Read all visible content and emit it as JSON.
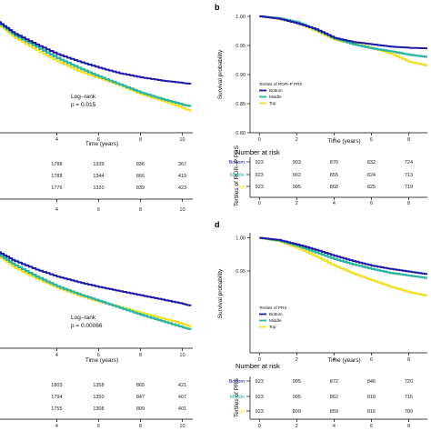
{
  "colors": {
    "Bottom": "#1f1aa5",
    "Middle": "#2fb6a3",
    "Top": "#f0e22b"
  },
  "chart_data": [
    {
      "panel": "",
      "type": "line",
      "xlabel": "Time (years)",
      "ylabel": "",
      "xlim": [
        1.2,
        10.5
      ],
      "ylim": [
        0.855,
        1.0
      ],
      "xticks": [
        4,
        6,
        8,
        10
      ],
      "yticks": [],
      "annotation": [
        "Log–rank",
        "p = 0.015"
      ],
      "series": [
        {
          "key": "Bottom",
          "x": [
            1.2,
            2,
            3,
            4,
            5,
            6,
            7,
            8,
            9,
            10,
            10.4
          ],
          "y": [
            0.993,
            0.978,
            0.965,
            0.953,
            0.944,
            0.936,
            0.929,
            0.924,
            0.92,
            0.917,
            0.916
          ]
        },
        {
          "key": "Middle",
          "x": [
            1.2,
            2,
            3,
            4,
            5,
            6,
            7,
            8,
            9,
            10,
            10.4
          ],
          "y": [
            0.992,
            0.976,
            0.962,
            0.948,
            0.936,
            0.925,
            0.915,
            0.905,
            0.897,
            0.89,
            0.888
          ]
        },
        {
          "key": "Top",
          "x": [
            1.2,
            2,
            3,
            4,
            5,
            6,
            7,
            8,
            9,
            10,
            10.4
          ],
          "y": [
            0.99,
            0.973,
            0.958,
            0.944,
            0.932,
            0.923,
            0.914,
            0.903,
            0.895,
            0.886,
            0.882
          ]
        }
      ],
      "risk_table": {
        "rows": [
          {
            "key": "Bottom",
            "values": [
              "1788",
              "1339",
              "836",
              "367"
            ]
          },
          {
            "key": "Middle",
            "values": [
              "1788",
              "1344",
              "866",
              "419"
            ]
          },
          {
            "key": "Top",
            "values": [
              "1776",
              "1320",
              "839",
              "423"
            ]
          }
        ],
        "xticks": [
          4,
          6,
          8,
          10
        ],
        "xlabel": "Time (years)"
      }
    },
    {
      "panel": "b",
      "type": "line",
      "xlabel": "Time (years)",
      "ylabel": "Survival probability",
      "xlim": [
        -0.5,
        9.0
      ],
      "ylim": [
        0.8,
        1.0
      ],
      "xticks": [
        0,
        2,
        4,
        6,
        8
      ],
      "yticks": [
        "1.00",
        "0.95",
        "0.90",
        "0.85",
        "0.80"
      ],
      "legend": {
        "title": "Tertiles of ROR–P PRS",
        "items": [
          "Bottom",
          "Middle",
          "Top"
        ]
      },
      "series": [
        {
          "key": "Bottom",
          "x": [
            0,
            1,
            2,
            3,
            4,
            5,
            6,
            7,
            8,
            9
          ],
          "y": [
            1.0,
            0.996,
            0.988,
            0.978,
            0.963,
            0.956,
            0.952,
            0.948,
            0.946,
            0.945
          ]
        },
        {
          "key": "Middle",
          "x": [
            0,
            1,
            2,
            3,
            4,
            5,
            6,
            7,
            8,
            9
          ],
          "y": [
            1.0,
            0.997,
            0.99,
            0.977,
            0.962,
            0.952,
            0.945,
            0.94,
            0.934,
            0.93
          ]
        },
        {
          "key": "Top",
          "x": [
            0,
            1,
            2,
            3,
            4,
            5,
            6,
            7,
            8,
            9
          ],
          "y": [
            1.0,
            0.996,
            0.989,
            0.975,
            0.96,
            0.953,
            0.946,
            0.936,
            0.922,
            0.915
          ]
        }
      ],
      "risk_table": {
        "title": "Number at risk",
        "ylabel": "Tertiles of ROR–P PRS",
        "rows": [
          {
            "key": "Bottom",
            "label": "Bottom",
            "values": [
              "923",
              "903",
              "870",
              "832",
              "724"
            ]
          },
          {
            "key": "Middle",
            "label": "Middle",
            "values": [
              "923",
              "902",
              "855",
              "824",
              "713"
            ]
          },
          {
            "key": "Top",
            "label": "Top",
            "values": [
              "923",
              "905",
              "868",
              "825",
              "719"
            ]
          }
        ],
        "xticks": [
          0,
          2,
          4,
          6,
          8
        ],
        "xlabel": "Time (years)"
      }
    },
    {
      "panel": "",
      "type": "line",
      "xlabel": "Time (years)",
      "ylabel": "",
      "xlim": [
        1.2,
        10.5
      ],
      "ylim": [
        0.855,
        1.0
      ],
      "xticks": [
        4,
        6,
        8,
        10
      ],
      "yticks": [],
      "annotation": [
        "Log–rank",
        "p = 0.00066"
      ],
      "series": [
        {
          "key": "Bottom",
          "x": [
            1.2,
            2,
            3,
            4,
            5,
            6,
            7,
            8,
            9,
            10,
            10.4
          ],
          "y": [
            0.993,
            0.98,
            0.968,
            0.958,
            0.95,
            0.943,
            0.937,
            0.931,
            0.925,
            0.919,
            0.916
          ]
        },
        {
          "key": "Middle",
          "x": [
            1.2,
            2,
            3,
            4,
            5,
            6,
            7,
            8,
            9,
            10,
            10.4
          ],
          "y": [
            0.99,
            0.974,
            0.958,
            0.944,
            0.933,
            0.923,
            0.913,
            0.903,
            0.894,
            0.885,
            0.882
          ]
        },
        {
          "key": "Top",
          "x": [
            1.2,
            2,
            3,
            4,
            5,
            6,
            7,
            8,
            9,
            10,
            10.4
          ],
          "y": [
            0.988,
            0.97,
            0.955,
            0.942,
            0.931,
            0.922,
            0.914,
            0.906,
            0.898,
            0.89,
            0.886
          ]
        }
      ],
      "risk_table": {
        "rows": [
          {
            "key": "Bottom",
            "values": [
              "1803",
              "1358",
              "865",
              "421"
            ]
          },
          {
            "key": "Middle",
            "values": [
              "1794",
              "1350",
              "847",
              "407"
            ]
          },
          {
            "key": "Top",
            "values": [
              "1755",
              "1308",
              "809",
              "401"
            ]
          }
        ],
        "xticks": [
          4,
          6,
          8,
          10
        ],
        "xlabel": "Time (years)"
      }
    },
    {
      "panel": "d",
      "type": "line",
      "xlabel": "Time (years)",
      "ylabel": "Survival probability",
      "xlim": [
        -0.5,
        9.0
      ],
      "ylim": [
        0.895,
        1.005
      ],
      "xticks": [
        0,
        2,
        4,
        6,
        8
      ],
      "yticks": [
        "1.00",
        "0.95"
      ],
      "legend": {
        "title": "Tertiles of PRS",
        "items": [
          "Bottom",
          "Middle",
          "Top"
        ]
      },
      "series": [
        {
          "key": "Bottom",
          "x": [
            0,
            1,
            2,
            3,
            4,
            5,
            6,
            7,
            8,
            9
          ],
          "y": [
            1.0,
            0.997,
            0.99,
            0.982,
            0.973,
            0.965,
            0.958,
            0.953,
            0.949,
            0.945
          ]
        },
        {
          "key": "Middle",
          "x": [
            0,
            1,
            2,
            3,
            4,
            5,
            6,
            7,
            8,
            9
          ],
          "y": [
            1.0,
            0.996,
            0.988,
            0.978,
            0.968,
            0.96,
            0.953,
            0.947,
            0.943,
            0.939
          ]
        },
        {
          "key": "Top",
          "x": [
            0,
            1,
            2,
            3,
            4,
            5,
            6,
            7,
            8,
            9
          ],
          "y": [
            1.0,
            0.995,
            0.985,
            0.972,
            0.958,
            0.946,
            0.936,
            0.926,
            0.918,
            0.912
          ]
        }
      ],
      "risk_table": {
        "title": "Number at risk",
        "ylabel": "Tertiles of PRS",
        "rows": [
          {
            "key": "Bottom",
            "label": "Bottom",
            "values": [
              "923",
              "905",
              "872",
              "846",
              "720"
            ]
          },
          {
            "key": "Middle",
            "label": "Middle",
            "values": [
              "923",
              "905",
              "862",
              "819",
              "715"
            ]
          },
          {
            "key": "Top",
            "label": "Top",
            "values": [
              "923",
              "899",
              "859",
              "816",
              "709"
            ]
          }
        ],
        "xticks": [
          0,
          2,
          4,
          6,
          8
        ],
        "xlabel": "Time (years)"
      }
    }
  ]
}
